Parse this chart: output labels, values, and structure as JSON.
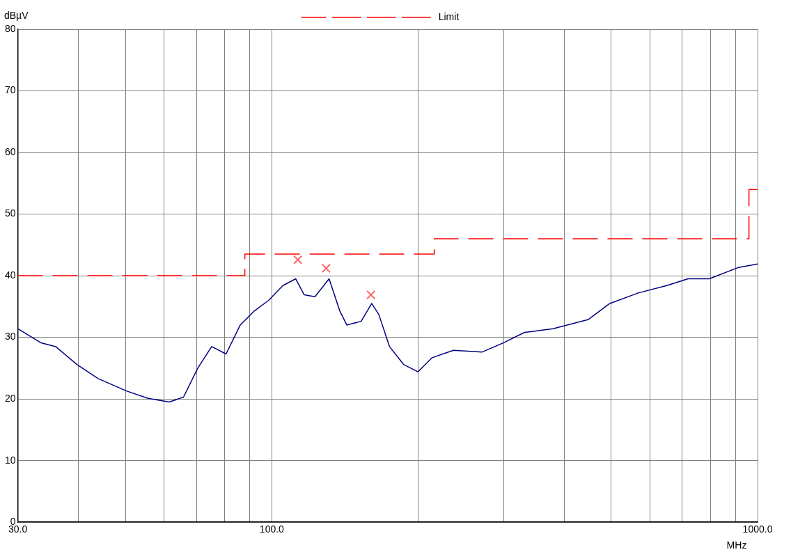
{
  "chart_data": {
    "type": "line",
    "xlabel": "MHz",
    "ylabel": "dBµV",
    "log": "x",
    "grid": true,
    "legend": "top",
    "xlim": [
      30,
      1000
    ],
    "ylim": [
      0,
      80
    ],
    "xticks": [
      {
        "value": 30,
        "label": "30.0"
      },
      {
        "value": 40,
        "label": null
      },
      {
        "value": 50,
        "label": null
      },
      {
        "value": 60,
        "label": null
      },
      {
        "value": 70,
        "label": null
      },
      {
        "value": 80,
        "label": null
      },
      {
        "value": 90,
        "label": null
      },
      {
        "value": 100,
        "label": "100.0"
      },
      {
        "value": 200,
        "label": null
      },
      {
        "value": 300,
        "label": null
      },
      {
        "value": 400,
        "label": null
      },
      {
        "value": 500,
        "label": null
      },
      {
        "value": 600,
        "label": null
      },
      {
        "value": 700,
        "label": null
      },
      {
        "value": 800,
        "label": null
      },
      {
        "value": 900,
        "label": null
      },
      {
        "value": 1000,
        "label": "1000.0"
      }
    ],
    "yticks": [
      0,
      10,
      20,
      30,
      40,
      50,
      60,
      70,
      80
    ],
    "series": [
      {
        "color": "#000080",
        "line_style": "solid",
        "marker": "none",
        "x": [
          30,
          33.5,
          35.9,
          39.7,
          43.9,
          50.2,
          55.6,
          61.5,
          65.8,
          70.4,
          75.2,
          80.5,
          86.1,
          92.1,
          98.5,
          105.4,
          112,
          116.6,
          122.7,
          131.2,
          138,
          142.7,
          152.7,
          160.6,
          166.1,
          174.7,
          186.8,
          199.9,
          213.8,
          236.6,
          270.7,
          299.5,
          331.4,
          379.2,
          448.6,
          496.4,
          568,
          650,
          719.2,
          795.6,
          910,
          1000
        ],
        "values": [
          31.4,
          29.1,
          28.5,
          25.6,
          23.3,
          21.3,
          20.1,
          19.5,
          20.3,
          25,
          28.5,
          27.3,
          32,
          34.3,
          36,
          38.4,
          39.5,
          36.9,
          36.6,
          39.5,
          34.3,
          32,
          32.6,
          35.5,
          33.7,
          28.5,
          25.6,
          24.4,
          26.7,
          27.9,
          27.6,
          29.1,
          30.8,
          31.4,
          32.9,
          35.5,
          37.2,
          38.4,
          39.5,
          39.5,
          41.3,
          41.9
        ]
      },
      {
        "name": "Limit",
        "color": "#ff0000",
        "line_style": "dashed",
        "marker": "none",
        "x": [
          30,
          88,
          88,
          216,
          216,
          960,
          960,
          1000
        ],
        "values": [
          40,
          40,
          43.5,
          43.5,
          46,
          46,
          54,
          54
        ]
      },
      {
        "type": "scatter",
        "color": "#ff6666",
        "marker": "cross",
        "x": [
          113.1,
          129.4,
          160
        ],
        "values": [
          42.6,
          41.2,
          36.9
        ]
      }
    ]
  }
}
